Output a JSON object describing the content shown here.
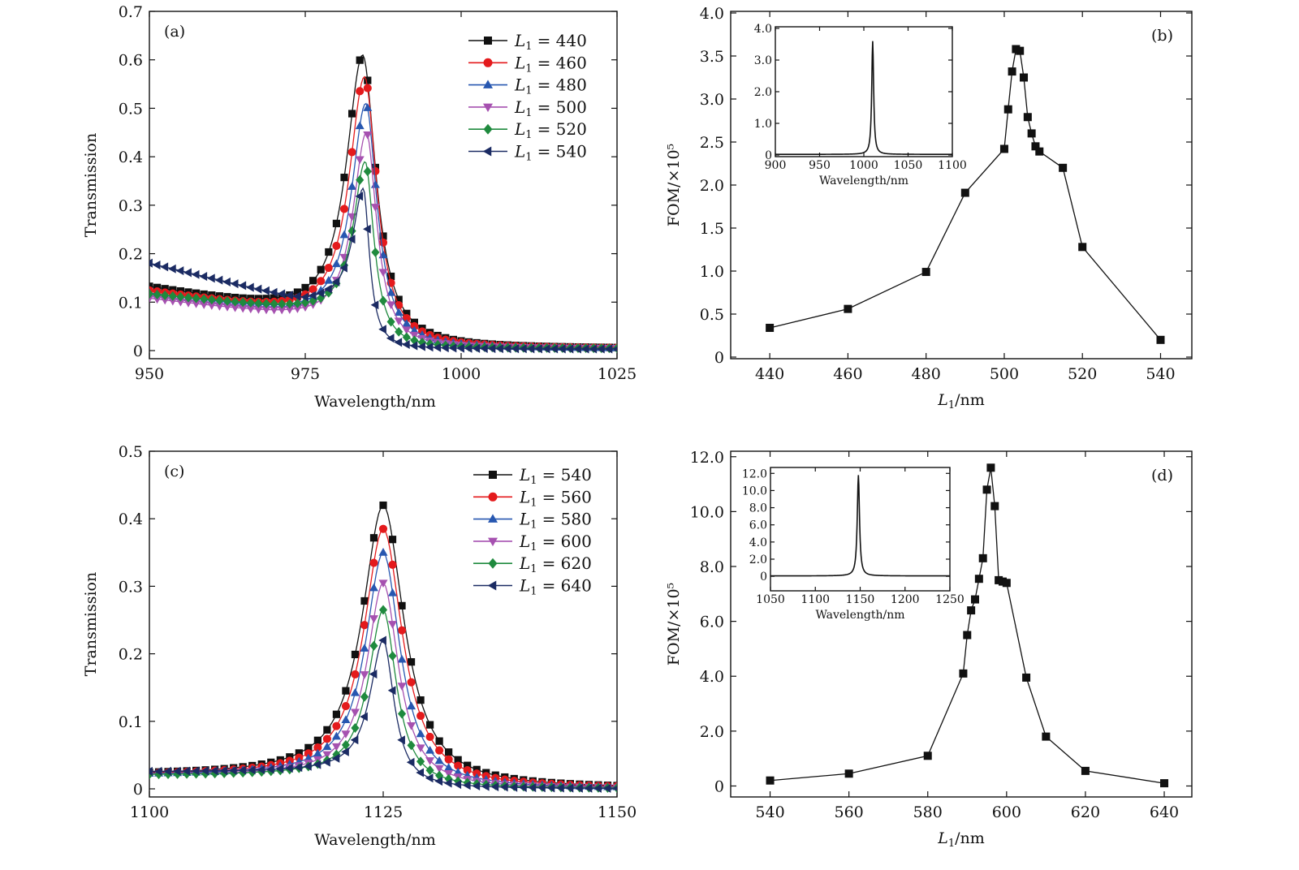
{
  "figure": {
    "colors": {
      "black": "#111111",
      "red": "#e41a1c",
      "blue": "#2757b0",
      "magenta": "#a651b0",
      "green": "#1f8a3e",
      "navy": "#1b2b63"
    }
  },
  "chart_data": [
    {
      "id": "a",
      "type": "line",
      "tag": "(a)",
      "xlabel": "Wavelength/nm",
      "ylabel": "Transmission",
      "xlim": [
        950,
        1025
      ],
      "ylim": [
        0,
        0.7
      ],
      "xticks": [
        950,
        975,
        1000,
        1025
      ],
      "yticks": [
        0,
        0.1,
        0.2,
        0.3,
        0.4,
        0.5,
        0.6,
        0.7
      ],
      "ytick_labels": [
        "0",
        "0.1",
        "0.2",
        "0.3",
        "0.4",
        "0.5",
        "0.6",
        "0.7"
      ],
      "legend_position": "top-right",
      "series": [
        {
          "name": "L1 = 440",
          "prefix": "L",
          "sub": "1",
          "value_text": "= 440",
          "color": "black",
          "marker": "square",
          "peak_x": 984.2,
          "peak": 0.61,
          "base": 0.06,
          "hw_left": 3.2,
          "hw_right": 2.6,
          "tail_left": 0.068,
          "tail_right": 0.004
        },
        {
          "name": "L1 = 460",
          "prefix": "L",
          "sub": "1",
          "value_text": "= 460",
          "color": "red",
          "marker": "circle",
          "peak_x": 984.5,
          "peak": 0.565,
          "base": 0.06,
          "hw_left": 3.0,
          "hw_right": 2.4,
          "tail_left": 0.06,
          "tail_right": 0.004
        },
        {
          "name": "L1 = 480",
          "prefix": "L",
          "sub": "1",
          "value_text": "= 480",
          "color": "blue",
          "marker": "triangle-up",
          "peak_x": 984.7,
          "peak": 0.51,
          "base": 0.06,
          "hw_left": 2.8,
          "hw_right": 2.2,
          "tail_left": 0.055,
          "tail_right": 0.004
        },
        {
          "name": "L1 = 500",
          "prefix": "L",
          "sub": "1",
          "value_text": "= 500",
          "color": "magenta",
          "marker": "triangle-down",
          "peak_x": 984.8,
          "peak": 0.45,
          "base": 0.055,
          "hw_left": 2.6,
          "hw_right": 2.0,
          "tail_left": 0.05,
          "tail_right": 0.004
        },
        {
          "name": "L1 = 520",
          "prefix": "L",
          "sub": "1",
          "value_text": "= 520",
          "color": "green",
          "marker": "diamond",
          "peak_x": 984.6,
          "peak": 0.39,
          "base": 0.075,
          "hw_left": 2.3,
          "hw_right": 1.7,
          "tail_left": 0.04,
          "tail_right": 0.004
        },
        {
          "name": "L1 = 540",
          "prefix": "L",
          "sub": "1",
          "value_text": "= 540",
          "color": "navy",
          "marker": "triangle-left",
          "peak_x": 984.3,
          "peak": 0.335,
          "base": 0.18,
          "hw_left": 2.0,
          "hw_right": 1.2,
          "tail_left": 0.0,
          "tail_right": 0.003
        }
      ]
    },
    {
      "id": "b",
      "type": "line",
      "tag": "(b)",
      "xlabel_prefix": "L",
      "xlabel_sub": "1",
      "xlabel_suffix": "/nm",
      "ylabel": "FOM/×10⁵",
      "xlim": [
        430,
        548
      ],
      "ylim": [
        0,
        4.0
      ],
      "xticks": [
        440,
        460,
        480,
        500,
        520,
        540
      ],
      "yticks": [
        0,
        0.5,
        1.0,
        1.5,
        2.0,
        2.5,
        3.0,
        3.5,
        4.0
      ],
      "ytick_labels": [
        "0",
        "0.5",
        "1.0",
        "1.5",
        "2.0",
        "2.5",
        "3.0",
        "3.5",
        "4.0"
      ],
      "series": [
        {
          "name": "FOM",
          "color": "black",
          "marker": "square",
          "x": [
            440,
            460,
            480,
            490,
            500,
            501,
            502,
            503,
            504,
            505,
            506,
            507,
            508,
            509,
            515,
            520,
            540
          ],
          "y": [
            0.34,
            0.56,
            0.99,
            1.91,
            2.42,
            2.88,
            3.32,
            3.58,
            3.56,
            3.25,
            2.79,
            2.6,
            2.45,
            2.39,
            2.2,
            1.28,
            0.2
          ]
        }
      ],
      "inset": {
        "xlabel": "Wavelength/nm",
        "xlim": [
          900,
          1100
        ],
        "ylim": [
          0,
          4.0
        ],
        "xticks": [
          900,
          950,
          1000,
          1050,
          1100
        ],
        "yticks": [
          0,
          1.0,
          2.0,
          3.0,
          4.0
        ],
        "ytick_labels": [
          "0",
          "1.0",
          "2.0",
          "3.0",
          "4.0"
        ],
        "peak_x": 1010,
        "peak": 3.6,
        "base": 0.02,
        "width": 1.3
      }
    },
    {
      "id": "c",
      "type": "line",
      "tag": "(c)",
      "xlabel": "Wavelength/nm",
      "ylabel": "Transmission",
      "xlim": [
        1100,
        1150
      ],
      "ylim": [
        0,
        0.5
      ],
      "xticks": [
        1100,
        1125,
        1150
      ],
      "yticks": [
        0,
        0.1,
        0.2,
        0.3,
        0.4,
        0.5
      ],
      "ytick_labels": [
        "0",
        "0.1",
        "0.2",
        "0.3",
        "0.4",
        "0.5"
      ],
      "legend_position": "top-right",
      "series": [
        {
          "name": "L1 = 540",
          "prefix": "L",
          "sub": "1",
          "value_text": "= 540",
          "color": "black",
          "marker": "square",
          "peak_x": 1125,
          "peak": 0.42,
          "base": 0.02,
          "hw_left": 2.7,
          "hw_right": 2.7,
          "tail_left": 0.0,
          "tail_right": 0.0
        },
        {
          "name": "L1 = 560",
          "prefix": "L",
          "sub": "1",
          "value_text": "= 560",
          "color": "red",
          "marker": "circle",
          "peak_x": 1125,
          "peak": 0.385,
          "base": 0.02,
          "hw_left": 2.5,
          "hw_right": 2.5,
          "tail_left": 0.0,
          "tail_right": 0.0
        },
        {
          "name": "L1 = 580",
          "prefix": "L",
          "sub": "1",
          "value_text": "= 580",
          "color": "blue",
          "marker": "triangle-up",
          "peak_x": 1125,
          "peak": 0.35,
          "base": 0.02,
          "hw_left": 2.3,
          "hw_right": 2.2,
          "tail_left": 0.0,
          "tail_right": 0.0
        },
        {
          "name": "L1 = 600",
          "prefix": "L",
          "sub": "1",
          "value_text": "= 600",
          "color": "magenta",
          "marker": "triangle-down",
          "peak_x": 1125,
          "peak": 0.305,
          "base": 0.02,
          "hw_left": 2.1,
          "hw_right": 2.0,
          "tail_left": 0.0,
          "tail_right": 0.0
        },
        {
          "name": "L1 = 620",
          "prefix": "L",
          "sub": "1",
          "value_text": "= 620",
          "color": "green",
          "marker": "diamond",
          "peak_x": 1125,
          "peak": 0.265,
          "base": 0.02,
          "hw_left": 1.9,
          "hw_right": 1.7,
          "tail_left": 0.0,
          "tail_right": 0.0
        },
        {
          "name": "L1 = 640",
          "prefix": "L",
          "sub": "1",
          "value_text": "= 640",
          "color": "navy",
          "marker": "triangle-left",
          "peak_x": 1125,
          "peak": 0.22,
          "base": 0.025,
          "hw_left": 1.7,
          "hw_right": 1.4,
          "tail_left": 0.0,
          "tail_right": 0.0
        }
      ]
    },
    {
      "id": "d",
      "type": "line",
      "tag": "(d)",
      "xlabel_prefix": "L",
      "xlabel_sub": "1",
      "xlabel_suffix": "/nm",
      "ylabel": "FOM/×10⁵",
      "xlim": [
        530,
        647
      ],
      "ylim": [
        -0.4,
        12.2
      ],
      "xticks": [
        540,
        560,
        580,
        600,
        620,
        640
      ],
      "yticks": [
        0,
        2.0,
        4.0,
        6.0,
        8.0,
        10.0,
        12.0
      ],
      "ytick_labels": [
        "0",
        "2.0",
        "4.0",
        "6.0",
        "8.0",
        "10.0",
        "12.0"
      ],
      "series": [
        {
          "name": "FOM",
          "color": "black",
          "marker": "square",
          "x": [
            540,
            560,
            580,
            589,
            590,
            591,
            592,
            593,
            594,
            595,
            596,
            597,
            598,
            599,
            600,
            605,
            610,
            620,
            640
          ],
          "y": [
            0.2,
            0.45,
            1.1,
            4.1,
            5.5,
            6.4,
            6.8,
            7.55,
            8.3,
            10.8,
            11.6,
            10.2,
            7.5,
            7.45,
            7.4,
            3.95,
            1.8,
            0.55,
            0.1
          ]
        }
      ],
      "inset": {
        "xlabel": "Wavelength/nm",
        "xlim": [
          1050,
          1250
        ],
        "ylim": [
          -1.5,
          12.5
        ],
        "xticks": [
          1050,
          1100,
          1150,
          1200,
          1250
        ],
        "yticks": [
          0,
          2.0,
          4.0,
          6.0,
          8.0,
          10.0,
          12.0
        ],
        "ytick_labels": [
          "0",
          "2.0",
          "4.0",
          "6.0",
          "8.0",
          "10.0",
          "12.0"
        ],
        "peak_x": 1148,
        "peak": 11.8,
        "base": 0.05,
        "width": 1.5
      }
    }
  ]
}
